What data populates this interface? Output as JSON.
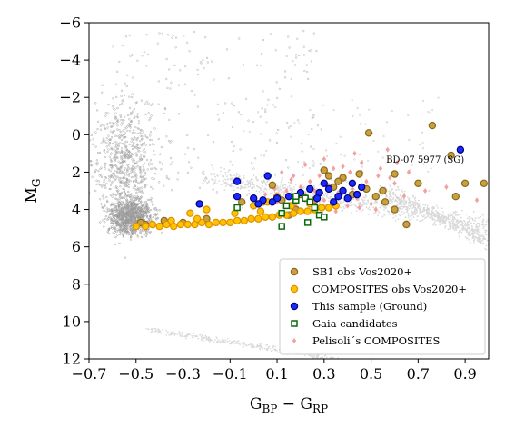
{
  "chart_data": {
    "type": "scatter",
    "x_label": "G",
    "x_label_sub": "BP",
    "x_label_minus": " − ",
    "x_label_2": "G",
    "x_label_sub_2": "RP",
    "y_label": "M",
    "y_label_sub": "G",
    "xlim": [
      -0.7,
      1.0
    ],
    "ylim": [
      12,
      -6
    ],
    "y_inverted": true,
    "x_ticks": [
      -0.7,
      -0.5,
      -0.3,
      -0.1,
      0.1,
      0.3,
      0.5,
      0.7,
      0.9
    ],
    "x_tick_labels": [
      "−0.7",
      "−0.5",
      "−0.3",
      "−0.1",
      "0.1",
      "0.3",
      "0.5",
      "0.7",
      "0.9"
    ],
    "y_ticks": [
      -6,
      -4,
      -2,
      0,
      2,
      4,
      6,
      8,
      10,
      12
    ],
    "y_tick_labels": [
      "−6",
      "−4",
      "−2",
      "0",
      "2",
      "4",
      "6",
      "8",
      "10",
      "12"
    ],
    "grid": false,
    "legend_position": "bottom-right",
    "annotations": [
      {
        "text": "BD-07 5977 (SG)",
        "x": 0.73,
        "y": 1.5
      }
    ],
    "series": [
      {
        "name": "SB1 obs Vos2020+",
        "marker": "circle",
        "color": "#c8a040",
        "edge": "#8a6a1a",
        "points": [
          [
            0.76,
            -0.5
          ],
          [
            0.84,
            1.1
          ],
          [
            0.9,
            2.6
          ],
          [
            0.98,
            2.6
          ],
          [
            0.55,
            3.0
          ],
          [
            0.6,
            4.0
          ],
          [
            0.45,
            2.1
          ],
          [
            0.48,
            2.9
          ],
          [
            0.52,
            3.3
          ],
          [
            0.56,
            3.6
          ],
          [
            0.49,
            -0.1
          ],
          [
            0.42,
            3.2
          ],
          [
            0.38,
            2.3
          ],
          [
            0.36,
            2.5
          ],
          [
            0.34,
            2.8
          ],
          [
            0.3,
            1.9
          ],
          [
            0.32,
            2.2
          ],
          [
            0.28,
            3.1
          ],
          [
            0.26,
            3.5
          ],
          [
            0.22,
            3.4
          ],
          [
            0.18,
            4.0
          ],
          [
            0.12,
            3.5
          ],
          [
            0.08,
            2.7
          ],
          [
            0.04,
            3.6
          ],
          [
            0.65,
            4.8
          ],
          [
            0.7,
            2.6
          ],
          [
            0.6,
            2.1
          ],
          [
            0.15,
            4.3
          ],
          [
            -0.05,
            3.6
          ],
          [
            -0.2,
            4.5
          ],
          [
            -0.3,
            4.7
          ],
          [
            -0.38,
            4.6
          ],
          [
            -0.46,
            4.8
          ],
          [
            -0.48,
            4.7
          ],
          [
            0.86,
            3.3
          ],
          [
            0.2,
            3.2
          ]
        ]
      },
      {
        "name": "COMPOSITES obs Vos2020+",
        "marker": "circle",
        "color": "#ffc400",
        "edge": "#e09000",
        "points": [
          [
            -0.5,
            4.9
          ],
          [
            -0.46,
            4.9
          ],
          [
            -0.43,
            4.8
          ],
          [
            -0.4,
            4.9
          ],
          [
            -0.37,
            4.8
          ],
          [
            -0.34,
            4.9
          ],
          [
            -0.31,
            4.8
          ],
          [
            -0.28,
            4.8
          ],
          [
            -0.25,
            4.8
          ],
          [
            -0.22,
            4.7
          ],
          [
            -0.19,
            4.8
          ],
          [
            -0.16,
            4.7
          ],
          [
            -0.13,
            4.7
          ],
          [
            -0.1,
            4.7
          ],
          [
            -0.07,
            4.6
          ],
          [
            -0.04,
            4.6
          ],
          [
            -0.01,
            4.5
          ],
          [
            0.02,
            4.5
          ],
          [
            0.05,
            4.4
          ],
          [
            0.08,
            4.4
          ],
          [
            0.11,
            4.3
          ],
          [
            0.14,
            4.3
          ],
          [
            0.17,
            4.2
          ],
          [
            0.2,
            4.1
          ],
          [
            0.23,
            4.1
          ],
          [
            0.26,
            4.0
          ],
          [
            0.29,
            3.9
          ],
          [
            0.32,
            3.9
          ],
          [
            0.35,
            3.8
          ],
          [
            -0.27,
            4.2
          ],
          [
            -0.2,
            4.0
          ],
          [
            -0.08,
            4.2
          ],
          [
            0.0,
            3.8
          ],
          [
            0.06,
            3.6
          ],
          [
            0.1,
            3.3
          ],
          [
            0.16,
            3.8
          ],
          [
            -0.24,
            4.5
          ],
          [
            -0.35,
            4.6
          ],
          [
            0.03,
            4.1
          ],
          [
            0.24,
            3.7
          ]
        ]
      },
      {
        "name": "This sample (Ground)",
        "marker": "circle",
        "color": "#1a2aff",
        "edge": "#000080",
        "points": [
          [
            0.88,
            0.8
          ],
          [
            0.46,
            2.8
          ],
          [
            0.44,
            3.2
          ],
          [
            0.4,
            3.4
          ],
          [
            0.42,
            2.6
          ],
          [
            0.38,
            3.0
          ],
          [
            0.36,
            3.3
          ],
          [
            0.34,
            3.6
          ],
          [
            0.32,
            2.9
          ],
          [
            0.3,
            2.6
          ],
          [
            0.28,
            3.1
          ],
          [
            0.27,
            3.4
          ],
          [
            0.24,
            2.9
          ],
          [
            0.2,
            3.1
          ],
          [
            0.18,
            3.3
          ],
          [
            0.15,
            3.3
          ],
          [
            0.1,
            3.4
          ],
          [
            0.08,
            3.6
          ],
          [
            0.06,
            2.2
          ],
          [
            0.04,
            3.5
          ],
          [
            0.02,
            3.7
          ],
          [
            0.0,
            3.4
          ],
          [
            -0.07,
            3.3
          ],
          [
            -0.07,
            2.5
          ],
          [
            -0.23,
            3.7
          ]
        ]
      },
      {
        "name": "Gaia candidates",
        "marker": "square",
        "color": "#ffffff",
        "edge": "#0a6a0a",
        "points": [
          [
            -0.07,
            3.9
          ],
          [
            0.12,
            4.9
          ],
          [
            0.12,
            4.2
          ],
          [
            0.14,
            3.8
          ],
          [
            0.18,
            3.5
          ],
          [
            0.22,
            3.4
          ],
          [
            0.24,
            3.6
          ],
          [
            0.26,
            3.9
          ],
          [
            0.28,
            4.3
          ],
          [
            0.3,
            4.4
          ],
          [
            0.23,
            4.7
          ],
          [
            0.18,
            3.3
          ]
        ]
      },
      {
        "name": "Pelisoli´s COMPOSITES",
        "marker": "diamond",
        "color": "#f4a0a0",
        "edge": "#f4a0a0",
        "points": [
          [
            0.05,
            3.2
          ],
          [
            0.08,
            2.6
          ],
          [
            0.1,
            3.6
          ],
          [
            0.14,
            3.0
          ],
          [
            0.16,
            2.4
          ],
          [
            0.18,
            3.7
          ],
          [
            0.2,
            2.8
          ],
          [
            0.22,
            3.2
          ],
          [
            0.24,
            2.5
          ],
          [
            0.26,
            3.0
          ],
          [
            0.28,
            2.2
          ],
          [
            0.3,
            3.5
          ],
          [
            0.32,
            2.7
          ],
          [
            0.34,
            1.8
          ],
          [
            0.36,
            3.1
          ],
          [
            0.38,
            2.4
          ],
          [
            0.4,
            3.8
          ],
          [
            0.42,
            2.9
          ],
          [
            0.44,
            3.4
          ],
          [
            0.46,
            1.5
          ],
          [
            0.48,
            2.5
          ],
          [
            0.5,
            3.7
          ],
          [
            0.53,
            2.2
          ],
          [
            0.56,
            3.0
          ],
          [
            0.6,
            2.6
          ],
          [
            0.64,
            3.3
          ],
          [
            0.12,
            2.0
          ],
          [
            0.22,
            1.6
          ],
          [
            0.3,
            1.3
          ],
          [
            0.38,
            1.7
          ],
          [
            0.46,
            2.0
          ],
          [
            0.54,
            1.8
          ],
          [
            0.58,
            2.3
          ],
          [
            0.45,
            3.9
          ],
          [
            0.35,
            4.1
          ],
          [
            0.27,
            4.0
          ],
          [
            0.31,
            2.0
          ],
          [
            0.41,
            2.0
          ],
          [
            0.52,
            4.0
          ],
          [
            0.17,
            2.2
          ],
          [
            0.09,
            2.9
          ],
          [
            0.43,
            1.0
          ],
          [
            0.57,
            0.8
          ],
          [
            0.61,
            1.5
          ],
          [
            0.73,
            3.0
          ],
          [
            0.82,
            2.8
          ],
          [
            0.95,
            3.5
          ],
          [
            0.66,
            2.0
          ],
          [
            0.13,
            3.5
          ],
          [
            0.25,
            2.9
          ]
        ]
      }
    ]
  }
}
